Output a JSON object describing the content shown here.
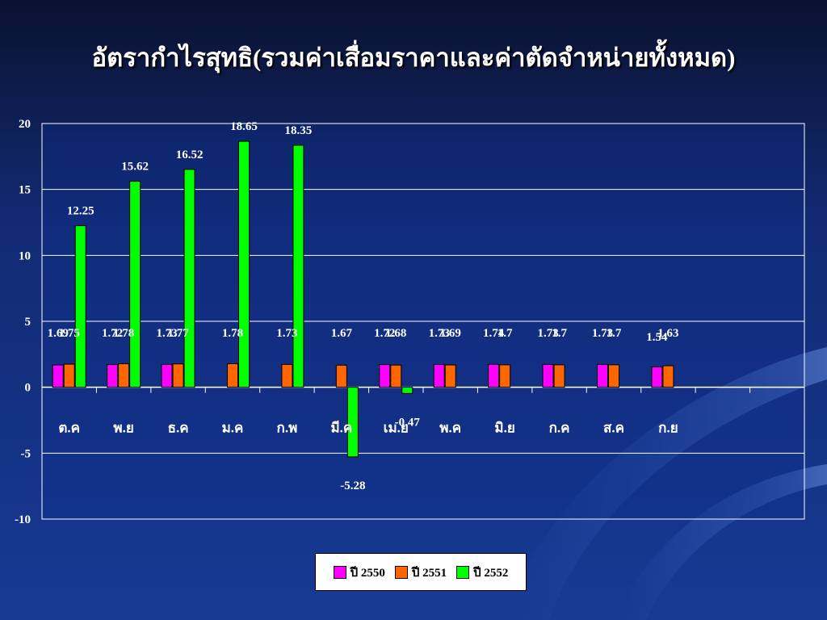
{
  "title": "อัตรากำไรสุทธิ(รวมค่าเสื่อมราคาและค่าตัดจำหน่ายทั้งหมด)",
  "chart_data": {
    "type": "bar",
    "title": "อัตรากำไรสุทธิ(รวมค่าเสื่อมราคาและค่าตัดจำหน่ายทั้งหมด)",
    "xlabel": "",
    "ylabel": "",
    "ylim": [
      -10,
      20
    ],
    "yticks": [
      20,
      15,
      10,
      5,
      0,
      -5,
      -10
    ],
    "grid": true,
    "legend_position": "bottom",
    "categories": [
      "ต.ค",
      "พ.ย",
      "ธ.ค",
      "ม.ค",
      "ก.พ",
      "มี.ค",
      "เม.ย",
      "พ.ค",
      "มิ.ย",
      "ก.ค",
      "ส.ค",
      "ก.ย",
      "",
      ""
    ],
    "series": [
      {
        "name": "ปี 2550",
        "color": "#ff00ff",
        "values": [
          1.69,
          1.72,
          1.73,
          null,
          null,
          null,
          1.72,
          1.73,
          1.74,
          1.73,
          1.73,
          1.54,
          null,
          null
        ]
      },
      {
        "name": "ปี 2551",
        "color": "#ff6600",
        "values": [
          1.75,
          1.78,
          1.77,
          1.78,
          1.73,
          1.67,
          1.68,
          1.69,
          1.7,
          1.7,
          1.7,
          1.63,
          null,
          null
        ]
      },
      {
        "name": "ปี 2552",
        "color": "#00ff00",
        "values": [
          12.25,
          15.62,
          16.52,
          18.65,
          18.35,
          -5.28,
          -0.47,
          null,
          null,
          null,
          null,
          null,
          null,
          null
        ]
      }
    ],
    "data_labels": [
      [
        "1.69",
        "1.72",
        "1.73",
        "",
        "",
        "",
        "1.72",
        "1.73",
        "1.74",
        "1.73",
        "1.73",
        "1.54",
        "",
        ""
      ],
      [
        "1.75",
        "1.78",
        "1.77",
        "1.78",
        "1.73",
        "1.67",
        "1.68",
        "1.69",
        "1.7",
        "1.7",
        "1.7",
        "1.63",
        "",
        ""
      ],
      [
        "12.25",
        "15.62",
        "16.52",
        "18.65",
        "18.35",
        "-5.28",
        "-0.47",
        "",
        "",
        "",
        "",
        "",
        "",
        ""
      ]
    ]
  }
}
